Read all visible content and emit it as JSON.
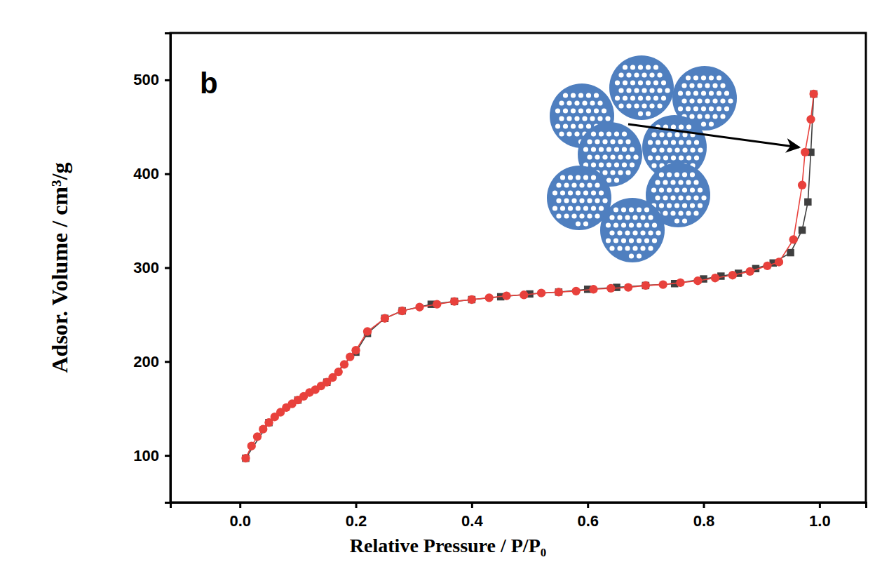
{
  "chart_data": {
    "type": "line",
    "panel_label": "b",
    "x_label": "Relative Pressure / P/P₀",
    "y_label": "Adsor. Volume / cm³/g",
    "xlim": [
      -0.12,
      1.08
    ],
    "xticks": [
      {
        "value": 0,
        "label": "0.0"
      },
      {
        "value": 0.2,
        "label": "0.2"
      },
      {
        "value": 0.4,
        "label": "0.4"
      },
      {
        "value": 0.6,
        "label": "0.6"
      },
      {
        "value": 0.8,
        "label": "0.8"
      },
      {
        "value": 1,
        "label": "1.0"
      }
    ],
    "ylim": [
      50,
      550
    ],
    "yticks": [
      100,
      200,
      300,
      400,
      500
    ],
    "grid": false,
    "series": [
      {
        "color": "#3f3f3f",
        "marker": "square",
        "line_style": "solid",
        "x": [
          0.01,
          0.05,
          0.1,
          0.15,
          0.2,
          0.22,
          0.25,
          0.28,
          0.33,
          0.37,
          0.4,
          0.45,
          0.5,
          0.55,
          0.6,
          0.65,
          0.7,
          0.75,
          0.8,
          0.83,
          0.86,
          0.89,
          0.92,
          0.95,
          0.97,
          0.98,
          0.985,
          0.99
        ],
        "values": [
          97,
          135,
          159,
          178,
          210,
          230,
          246,
          254,
          261,
          264,
          266,
          269,
          272,
          274,
          277,
          279,
          281,
          283,
          288,
          291,
          294,
          299,
          305,
          316,
          340,
          370,
          423,
          485
        ]
      },
      {
        "color": "#e8413c",
        "marker": "circle",
        "line_style": "solid",
        "x": [
          0.01,
          0.02,
          0.03,
          0.04,
          0.05,
          0.06,
          0.07,
          0.08,
          0.09,
          0.1,
          0.11,
          0.12,
          0.13,
          0.14,
          0.15,
          0.16,
          0.17,
          0.18,
          0.19,
          0.2,
          0.22,
          0.25,
          0.28,
          0.31,
          0.34,
          0.37,
          0.4,
          0.43,
          0.46,
          0.49,
          0.52,
          0.55,
          0.58,
          0.61,
          0.64,
          0.67,
          0.7,
          0.73,
          0.76,
          0.79,
          0.82,
          0.85,
          0.88,
          0.91,
          0.93,
          0.955,
          0.97,
          0.975,
          0.985,
          0.99
        ],
        "values": [
          97,
          110,
          120,
          128,
          135,
          141,
          146,
          151,
          155,
          159,
          163,
          167,
          170,
          174,
          178,
          183,
          189,
          197,
          205,
          212,
          232,
          246,
          254,
          258,
          261,
          264,
          266,
          268,
          270,
          271,
          273,
          274,
          275,
          277,
          278,
          279,
          281,
          282,
          284,
          286,
          289,
          292,
          296,
          302,
          306,
          330,
          388,
          423,
          458,
          485
        ]
      }
    ]
  }
}
